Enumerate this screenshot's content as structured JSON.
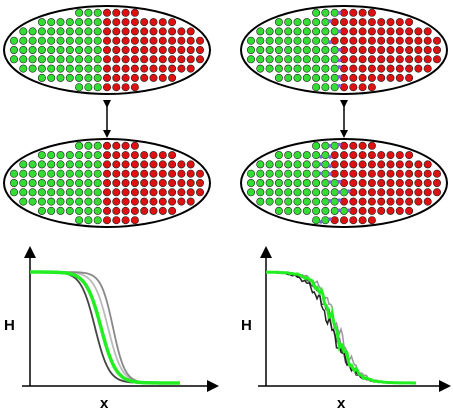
{
  "panels": [
    {
      "y_label": "H",
      "x_label": "x"
    },
    {
      "y_label": "H",
      "x_label": "x"
    }
  ]
}
